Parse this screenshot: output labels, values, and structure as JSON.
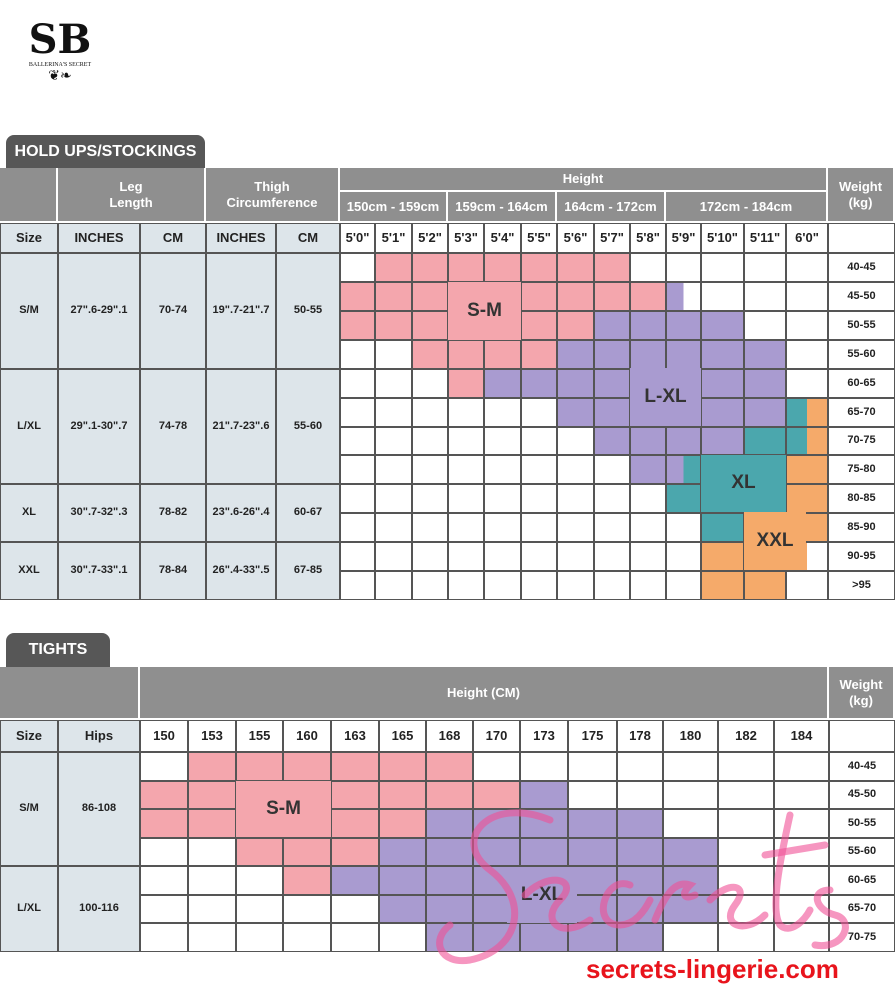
{
  "logo": {
    "monogram": "SB",
    "name": "BALLERINA'S SECRET"
  },
  "colors": {
    "S-M": "#f4a6ad",
    "L-XL": "#a99bd0",
    "XL": "#4ba7ad",
    "XXL": "#f5aa6a",
    "header": "#8f8f8f",
    "tab": "#575757",
    "light": "#dde5ea"
  },
  "holdups": {
    "tab": "HOLD UPS/STOCKINGS",
    "leg_header": "Leg\nLength",
    "thigh_header": "Thigh\nCircumference",
    "height_header": "Height",
    "weight_header": "Weight\n(kg)",
    "height_ranges": [
      "150cm - 159cm",
      "159cm - 164cm",
      "164cm - 172cm",
      "172cm - 184cm"
    ],
    "sub_headers": [
      "Size",
      "INCHES",
      "CM",
      "INCHES",
      "CM"
    ],
    "heights": [
      "5'0\"",
      "5'1\"",
      "5'2\"",
      "5'3\"",
      "5'4\"",
      "5'5\"",
      "5'6\"",
      "5'7\"",
      "5'8\"",
      "5'9\"",
      "5'10\"",
      "5'11\"",
      "6'0\""
    ],
    "weights": [
      "40-45",
      "45-50",
      "50-55",
      "55-60",
      "60-65",
      "65-70",
      "70-75",
      "75-80",
      "80-85",
      "85-90",
      "90-95",
      ">95"
    ],
    "sizes": [
      {
        "size": "S/M",
        "leg_in": "27\".6-29\".1",
        "leg_cm": "70-74",
        "thigh_in": "19\".7-21\".7",
        "thigh_cm": "50-55"
      },
      {
        "size": "L/XL",
        "leg_in": "29\".1-30\".7",
        "leg_cm": "74-78",
        "thigh_in": "21\".7-23\".6",
        "thigh_cm": "55-60"
      },
      {
        "size": "XL",
        "leg_in": "30\".7-32\".3",
        "leg_cm": "78-82",
        "thigh_in": "23\".6-26\".4",
        "thigh_cm": "60-67"
      },
      {
        "size": "XXL",
        "leg_in": "30\".7-33\".1",
        "leg_cm": "78-84",
        "thigh_in": "26\".4-33\".5",
        "thigh_cm": "67-85"
      }
    ],
    "zone_labels": [
      "S-M",
      "L-XL",
      "XL",
      "XXL"
    ],
    "grid": [
      [
        "W",
        "P",
        "P",
        "P",
        "P",
        "P",
        "P",
        "P",
        "W",
        "W",
        "W",
        "W",
        "W"
      ],
      [
        "P",
        "P",
        "P",
        "P",
        "P",
        "P",
        "P",
        "P",
        "P",
        "VW",
        "W",
        "W",
        "W"
      ],
      [
        "P",
        "P",
        "P",
        "P",
        "P",
        "P",
        "P",
        "V",
        "V",
        "V",
        "V",
        "W",
        "W"
      ],
      [
        "W",
        "W",
        "P",
        "P",
        "P",
        "P",
        "V",
        "V",
        "V",
        "V",
        "V",
        "V",
        "W"
      ],
      [
        "W",
        "W",
        "W",
        "P",
        "V",
        "V",
        "V",
        "V",
        "V",
        "V",
        "V",
        "V",
        "W"
      ],
      [
        "W",
        "W",
        "W",
        "W",
        "W",
        "W",
        "V",
        "V",
        "V",
        "V",
        "V",
        "V",
        "TO"
      ],
      [
        "W",
        "W",
        "W",
        "W",
        "W",
        "W",
        "W",
        "V",
        "V",
        "V",
        "V",
        "T",
        "TO"
      ],
      [
        "W",
        "W",
        "W",
        "W",
        "W",
        "W",
        "W",
        "W",
        "V",
        "VT",
        "T",
        "T",
        "O"
      ],
      [
        "W",
        "W",
        "W",
        "W",
        "W",
        "W",
        "W",
        "W",
        "W",
        "T",
        "T",
        "T",
        "O"
      ],
      [
        "W",
        "W",
        "W",
        "W",
        "W",
        "W",
        "W",
        "W",
        "W",
        "W",
        "T",
        "O",
        "O"
      ],
      [
        "W",
        "W",
        "W",
        "W",
        "W",
        "W",
        "W",
        "W",
        "W",
        "W",
        "O",
        "O",
        "OW"
      ],
      [
        "W",
        "W",
        "W",
        "W",
        "W",
        "W",
        "W",
        "W",
        "W",
        "W",
        "O",
        "O",
        "W"
      ]
    ]
  },
  "tights": {
    "tab": "TIGHTS",
    "height_header": "Height (CM)",
    "weight_header": "Weight\n(kg)",
    "sub_headers": [
      "Size",
      "Hips"
    ],
    "heights": [
      "150",
      "153",
      "155",
      "160",
      "163",
      "165",
      "168",
      "170",
      "173",
      "175",
      "178",
      "180",
      "182",
      "184"
    ],
    "weights": [
      "40-45",
      "45-50",
      "50-55",
      "55-60",
      "60-65",
      "65-70",
      "70-75"
    ],
    "sizes": [
      {
        "size": "S/M",
        "hips": "86-108"
      },
      {
        "size": "L/XL",
        "hips": "100-116"
      }
    ],
    "zone_labels": [
      "S-M",
      "L-XL"
    ],
    "grid": [
      [
        "W",
        "P",
        "P",
        "P",
        "P",
        "P",
        "P",
        "W",
        "W",
        "W",
        "W",
        "W",
        "W",
        "W"
      ],
      [
        "P",
        "P",
        "P",
        "P",
        "P",
        "P",
        "P",
        "P",
        "V",
        "W",
        "W",
        "W",
        "W",
        "W"
      ],
      [
        "P",
        "P",
        "P",
        "P",
        "P",
        "P",
        "V",
        "V",
        "V",
        "V",
        "V",
        "W",
        "W",
        "W"
      ],
      [
        "W",
        "W",
        "P",
        "P",
        "P",
        "V",
        "V",
        "V",
        "V",
        "V",
        "V",
        "V",
        "W",
        "W"
      ],
      [
        "W",
        "W",
        "W",
        "P",
        "V",
        "V",
        "V",
        "V",
        "V",
        "V",
        "V",
        "V",
        "W",
        "W"
      ],
      [
        "W",
        "W",
        "W",
        "W",
        "W",
        "V",
        "V",
        "V",
        "V",
        "V",
        "V",
        "V",
        "W",
        "W"
      ],
      [
        "W",
        "W",
        "W",
        "W",
        "W",
        "W",
        "V",
        "V",
        "V",
        "V",
        "V",
        "W",
        "W",
        "W"
      ]
    ]
  },
  "watermark": "Secrets",
  "footer_url": "secrets-lingerie.com"
}
